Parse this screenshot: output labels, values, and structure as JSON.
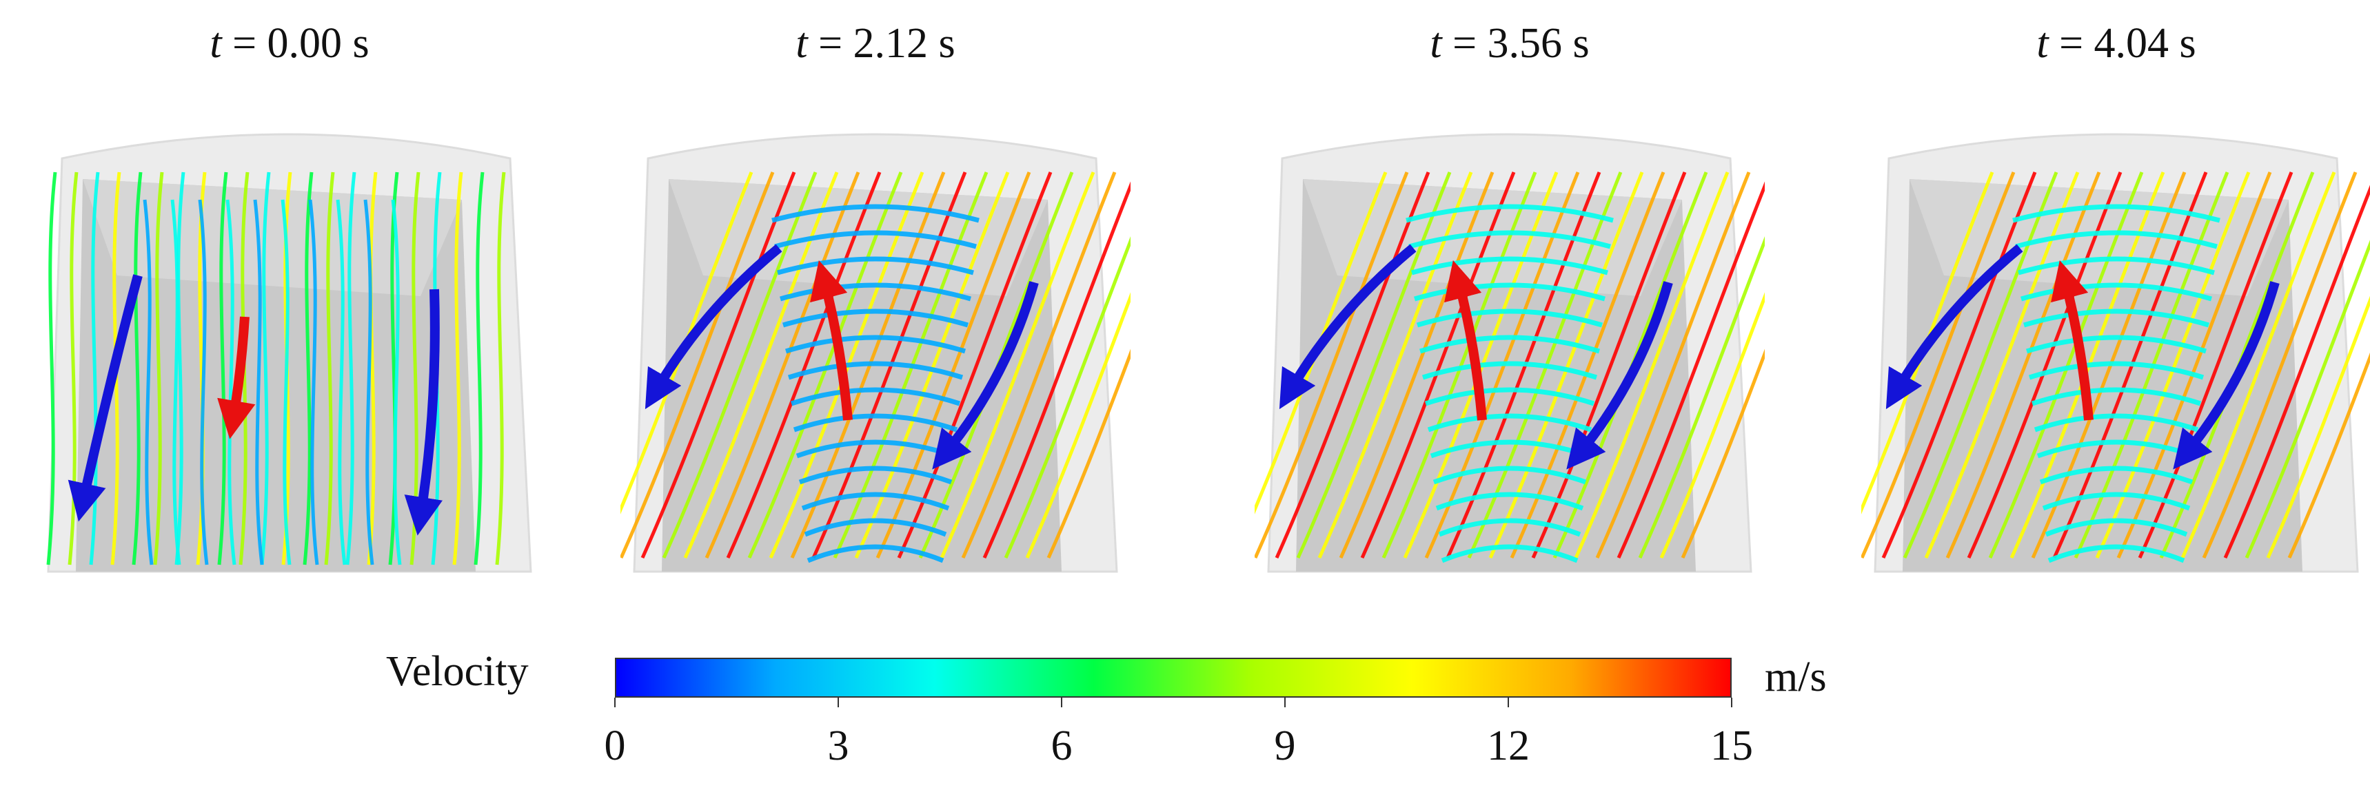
{
  "panels": [
    {
      "t_var": "t",
      "t_value": "= 0.00 s",
      "flow": "down"
    },
    {
      "t_var": "t",
      "t_value": "= 2.12 s",
      "flow": "up-swirl"
    },
    {
      "t_var": "t",
      "t_value": "= 3.56 s",
      "flow": "up-swirl"
    },
    {
      "t_var": "t",
      "t_value": "= 4.04 s",
      "flow": "up-swirl"
    }
  ],
  "colorbar": {
    "title": "Velocity",
    "unit": "m/s",
    "min": 0,
    "max": 15,
    "ticks": [
      "0",
      "3",
      "6",
      "9",
      "12",
      "15"
    ],
    "colors": [
      "#0000ff",
      "#00aaff",
      "#00ffee",
      "#00ff44",
      "#aaff00",
      "#ffff00",
      "#ffaa00",
      "#ff0000"
    ]
  },
  "arrow_colors": {
    "outer": "#1414d8",
    "core": "#e81010"
  }
}
